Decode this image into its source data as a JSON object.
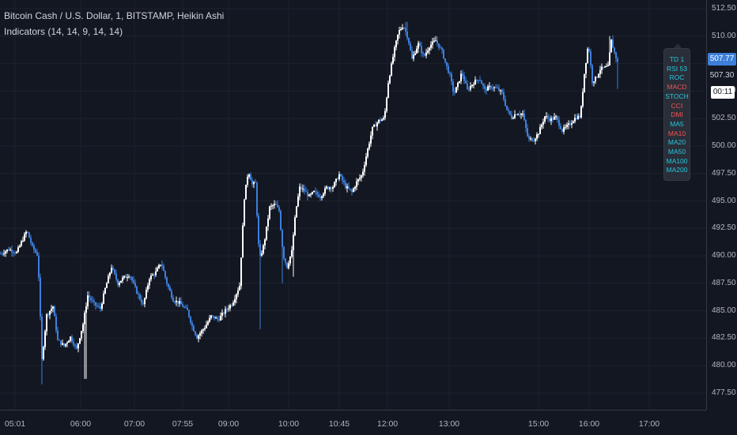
{
  "legend": {
    "title": "Bitcoin Cash / U.S. Dollar, 1, BITSTAMP, Heikin Ashi",
    "indicators": "Indicators (14, 14, 9, 14, 14)"
  },
  "price_axis": {
    "ticks": [
      "512.50",
      "510.00",
      "507.50",
      "505.00",
      "502.50",
      "500.00",
      "497.50",
      "495.00",
      "492.50",
      "490.00",
      "487.50",
      "485.00",
      "482.50",
      "480.00",
      "477.50"
    ],
    "current_price": "507.77",
    "secondary_price": "507.30",
    "countdown": "00:11"
  },
  "time_axis": {
    "ticks": [
      "05:01",
      "06:00",
      "07:00",
      "07:55",
      "09:00",
      "10:00",
      "10:45",
      "12:00",
      "13:00",
      "15:00",
      "16:00",
      "17:00"
    ]
  },
  "indicator_panel": {
    "items": [
      {
        "label": "TD 1",
        "color": "#26c6da"
      },
      {
        "label": "RSI 53",
        "color": "#26c6da"
      },
      {
        "label": "ROC",
        "color": "#26c6da"
      },
      {
        "label": "MACD",
        "color": "#ef5350"
      },
      {
        "label": "STOCH",
        "color": "#26c6da"
      },
      {
        "label": "CCI",
        "color": "#ef5350"
      },
      {
        "label": "DMI",
        "color": "#ef5350"
      },
      {
        "label": "MA5",
        "color": "#26c6da"
      },
      {
        "label": "MA10",
        "color": "#ef5350"
      },
      {
        "label": "MA20",
        "color": "#26c6da"
      },
      {
        "label": "MA50",
        "color": "#26c6da"
      },
      {
        "label": "MA100",
        "color": "#26c6da"
      },
      {
        "label": "MA200",
        "color": "#26c6da"
      }
    ]
  },
  "colors": {
    "background": "#131722",
    "grid": "#1e222d",
    "up_candle": "#ffffff",
    "down_candle": "#3d7fdb",
    "accent": "#3d7fdb"
  },
  "chart_data": {
    "type": "candlestick",
    "style": "Heikin Ashi",
    "ylim": [
      476.5,
      513.5
    ],
    "series": [
      {
        "name": "Bitcoin Cash / U.S. Dollar",
        "keypoints": [
          [
            0,
            490.2
          ],
          [
            10,
            490.6
          ],
          [
            20,
            490.3
          ],
          [
            33,
            492.3
          ],
          [
            40,
            490.8
          ],
          [
            47,
            490.0
          ],
          [
            52,
            480.5
          ],
          [
            58,
            484.6
          ],
          [
            66,
            485.4
          ],
          [
            72,
            482.3
          ],
          [
            80,
            481.8
          ],
          [
            88,
            482.6
          ],
          [
            96,
            481.5
          ],
          [
            104,
            483.8
          ],
          [
            110,
            486.4
          ],
          [
            118,
            485.6
          ],
          [
            126,
            485.2
          ],
          [
            132,
            487.0
          ],
          [
            140,
            489.0
          ],
          [
            148,
            487.5
          ],
          [
            155,
            488.0
          ],
          [
            163,
            488.3
          ],
          [
            172,
            486.7
          ],
          [
            180,
            485.5
          ],
          [
            188,
            488.0
          ],
          [
            196,
            488.5
          ],
          [
            203,
            489.4
          ],
          [
            210,
            487.5
          ],
          [
            218,
            486.0
          ],
          [
            226,
            485.7
          ],
          [
            236,
            485.0
          ],
          [
            242,
            483.6
          ],
          [
            248,
            482.6
          ],
          [
            258,
            483.5
          ],
          [
            266,
            484.5
          ],
          [
            275,
            484.2
          ],
          [
            285,
            485.1
          ],
          [
            293,
            485.7
          ],
          [
            302,
            487.3
          ],
          [
            308,
            495.3
          ],
          [
            313,
            497.8
          ],
          [
            318,
            496.5
          ],
          [
            322,
            496.6
          ],
          [
            327,
            489.6
          ],
          [
            333,
            491.1
          ],
          [
            340,
            494.4
          ],
          [
            347,
            494.7
          ],
          [
            352,
            494.1
          ],
          [
            357,
            490.1
          ],
          [
            362,
            489.0
          ],
          [
            368,
            490.4
          ],
          [
            373,
            494.1
          ],
          [
            378,
            496.2
          ],
          [
            383,
            496.0
          ],
          [
            390,
            495.4
          ],
          [
            396,
            495.8
          ],
          [
            404,
            495.4
          ],
          [
            412,
            496.2
          ],
          [
            420,
            496.3
          ],
          [
            428,
            497.4
          ],
          [
            436,
            496.3
          ],
          [
            444,
            495.8
          ],
          [
            450,
            496.7
          ],
          [
            457,
            497.4
          ],
          [
            463,
            499.4
          ],
          [
            470,
            501.6
          ],
          [
            478,
            502.3
          ],
          [
            485,
            502.5
          ],
          [
            490,
            505.8
          ],
          [
            497,
            508.5
          ],
          [
            503,
            510.4
          ],
          [
            509,
            511.0
          ],
          [
            515,
            509.8
          ],
          [
            520,
            507.9
          ],
          [
            528,
            509.3
          ],
          [
            535,
            508.1
          ],
          [
            542,
            509.1
          ],
          [
            550,
            509.6
          ],
          [
            558,
            508.6
          ],
          [
            563,
            507.4
          ],
          [
            568,
            506.4
          ],
          [
            573,
            504.7
          ],
          [
            578,
            505.6
          ],
          [
            583,
            506.7
          ],
          [
            590,
            505.1
          ],
          [
            597,
            505.7
          ],
          [
            605,
            506.2
          ],
          [
            612,
            505.1
          ],
          [
            620,
            505.4
          ],
          [
            628,
            505.2
          ],
          [
            634,
            504.8
          ],
          [
            640,
            503.3
          ],
          [
            646,
            502.6
          ],
          [
            652,
            503.0
          ],
          [
            660,
            502.9
          ],
          [
            667,
            500.6
          ],
          [
            674,
            500.6
          ],
          [
            680,
            501.2
          ],
          [
            688,
            502.7
          ],
          [
            695,
            502.4
          ],
          [
            702,
            502.6
          ],
          [
            710,
            501.4
          ],
          [
            718,
            501.9
          ],
          [
            727,
            502.6
          ],
          [
            733,
            502.7
          ],
          [
            738,
            506.6
          ],
          [
            743,
            509.4
          ],
          [
            748,
            505.9
          ],
          [
            753,
            506.2
          ],
          [
            758,
            507.0
          ],
          [
            763,
            507.1
          ],
          [
            768,
            507.2
          ],
          [
            772,
            509.6
          ],
          [
            776,
            508.5
          ],
          [
            780,
            507.6
          ]
        ]
      }
    ]
  }
}
